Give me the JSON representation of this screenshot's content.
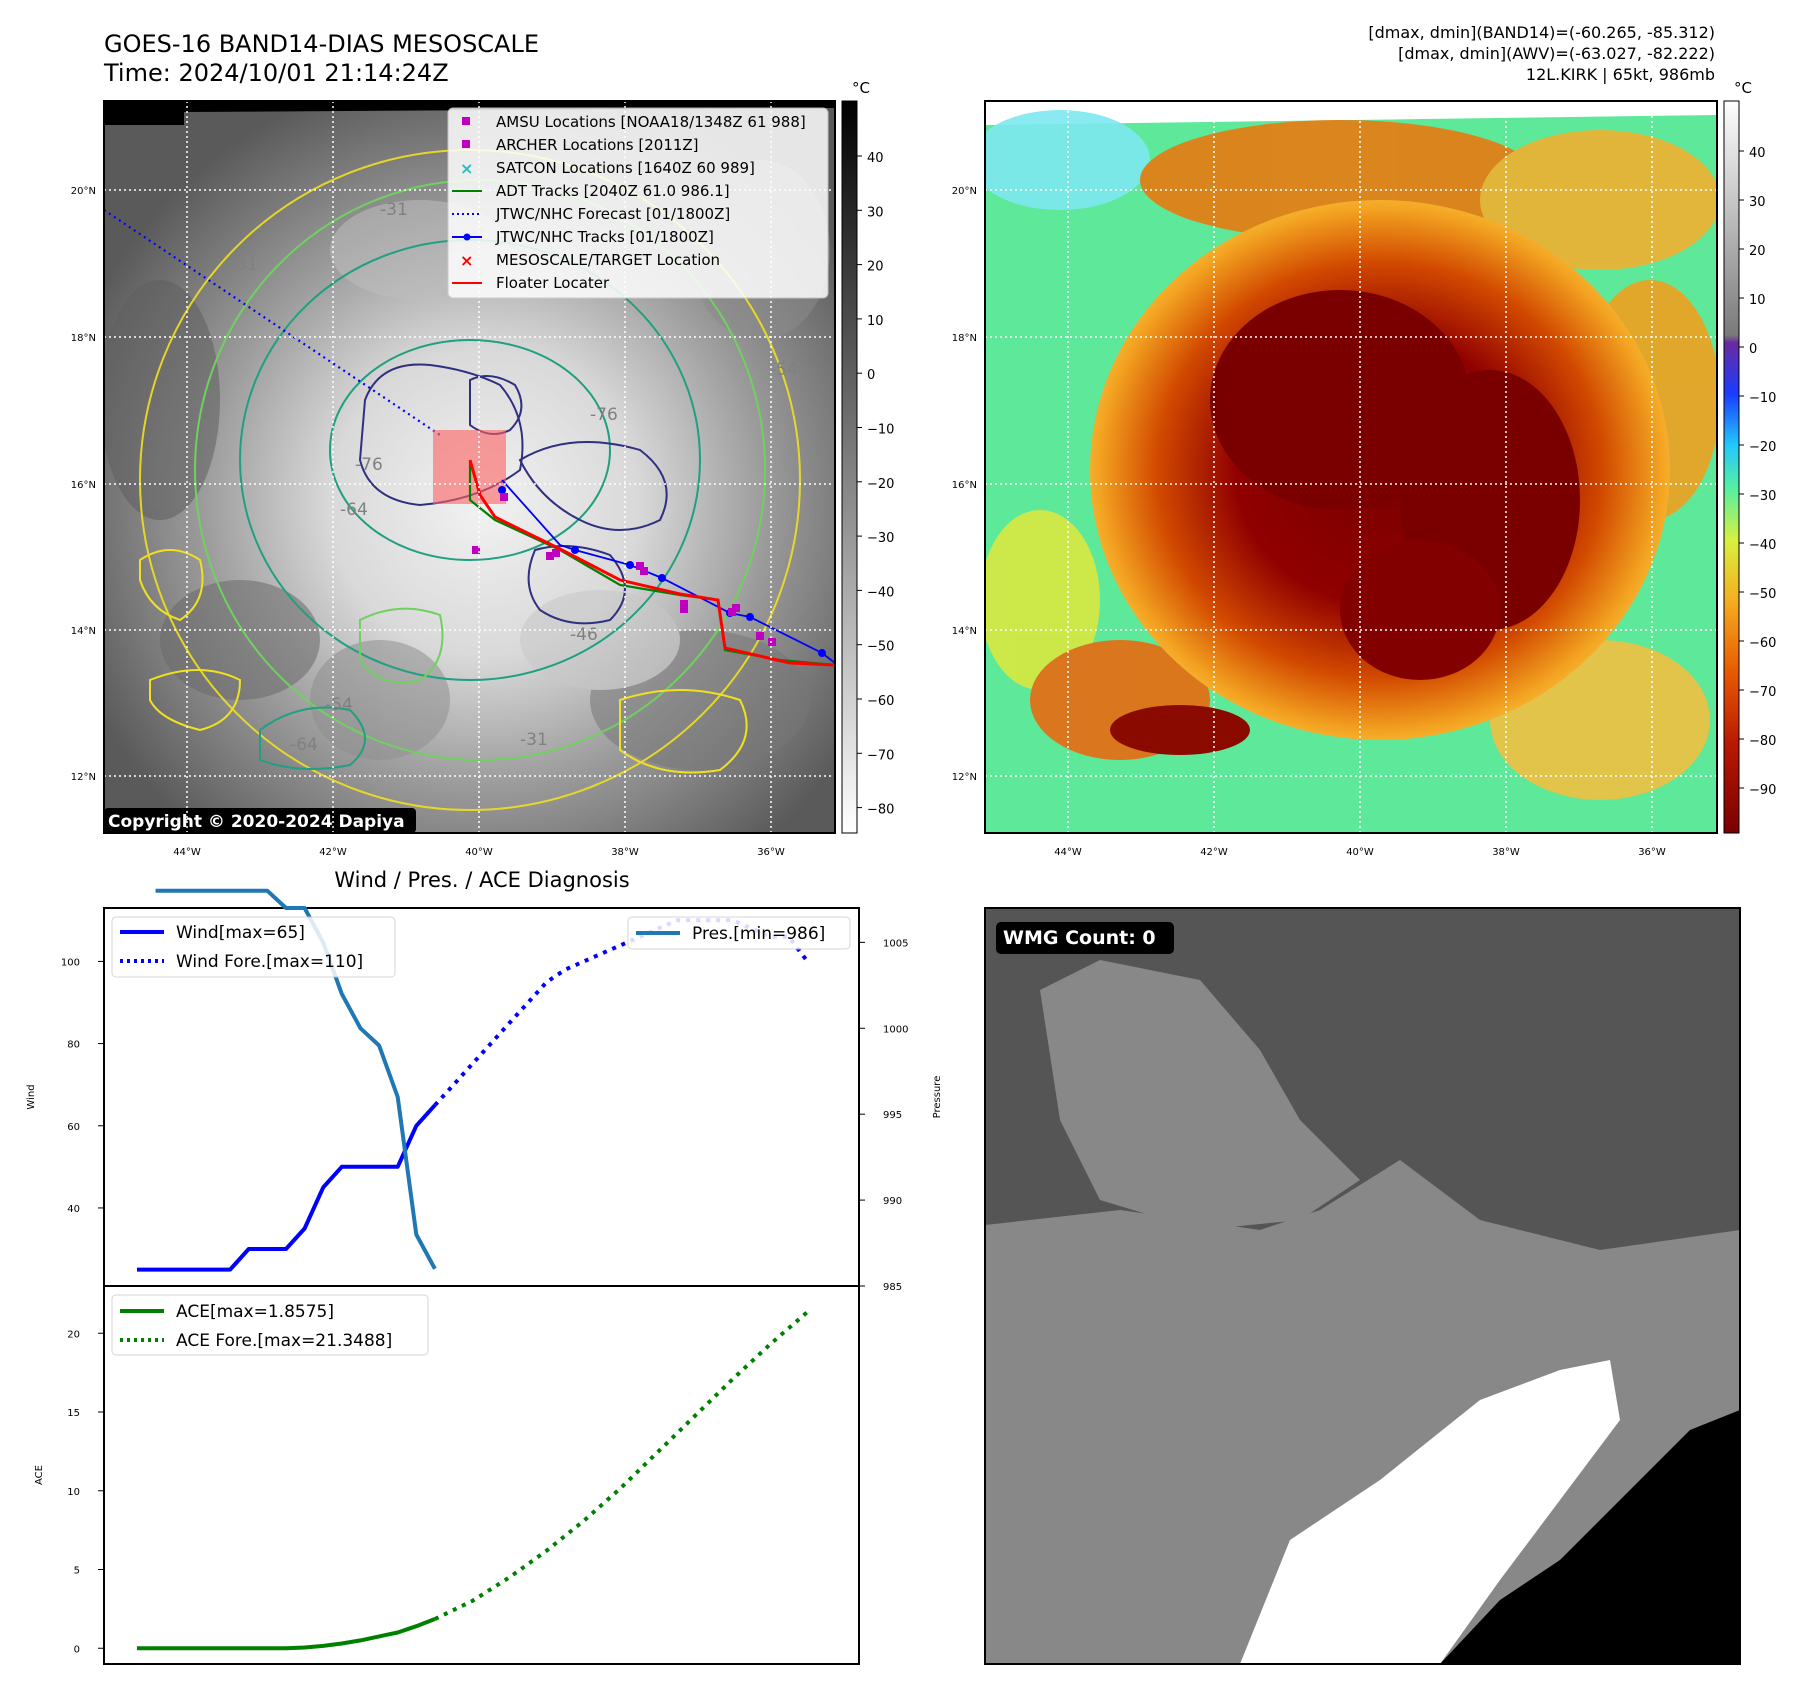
{
  "header": {
    "title_line1": "GOES-16 BAND14-DIAS MESOSCALE",
    "title_line2": "Time: 2024/10/01 21:14:24Z",
    "stats_line1": "[dmax, dmin](BAND14)=(-60.265, -85.312)",
    "stats_line2": "[dmax, dmin](AWV)=(-63.027, -82.222)",
    "stats_line3": "12L.KIRK | 65kt, 986mb"
  },
  "maps": {
    "lat_labels": [
      "20°N",
      "18°N",
      "16°N",
      "14°N",
      "12°N"
    ],
    "lon_labels": [
      "44°W",
      "42°W",
      "40°W",
      "38°W",
      "36°W"
    ],
    "copyright": "Copyright © 2020-2024 Dapiya",
    "contour_labels": [
      "-76",
      "-64",
      "-54",
      "-31",
      "-46",
      "-54",
      "-64",
      "-31",
      "-76",
      "-54",
      "-31"
    ],
    "legend": [
      {
        "label": "AMSU Locations [NOAA18/1348Z 61 988]",
        "marker": "square",
        "color": "#c000c0"
      },
      {
        "label": "ARCHER Locations [2011Z]",
        "marker": "square",
        "color": "#c000c0"
      },
      {
        "label": "SATCON Locations [1640Z 60 989]",
        "marker": "x",
        "color": "#20c0c0"
      },
      {
        "label": "ADT Tracks [2040Z 61.0 986.1]",
        "marker": "line",
        "color": "#008000"
      },
      {
        "label": "JTWC/NHC Forecast [01/1800Z]",
        "marker": "dotted",
        "color": "#0000ff"
      },
      {
        "label": "JTWC/NHC Tracks [01/1800Z]",
        "marker": "line-dot",
        "color": "#0000ff"
      },
      {
        "label": "MESOSCALE/TARGET Location",
        "marker": "x",
        "color": "#ff0000"
      },
      {
        "label": "Floater Locater",
        "marker": "line",
        "color": "#ff0000"
      }
    ]
  },
  "colorbar_gray": {
    "unit": "°C",
    "ticks": [
      "40",
      "30",
      "20",
      "10",
      "0",
      "−10",
      "−20",
      "−30",
      "−40",
      "−50",
      "−60",
      "−70",
      "−80"
    ]
  },
  "colorbar_color": {
    "unit": "°C",
    "ticks": [
      "40",
      "30",
      "20",
      "10",
      "0",
      "−10",
      "−20",
      "−30",
      "−40",
      "−50",
      "−60",
      "−70",
      "−80",
      "−90"
    ]
  },
  "wmg": {
    "label": "WMG Count: 0"
  },
  "chart_data": [
    {
      "type": "line",
      "title": "Wind / Pres. / ACE Diagnosis",
      "ylabel": "Wind",
      "y2label": "Pressure",
      "ylim": [
        21,
        113
      ],
      "y2lim": [
        985,
        1007
      ],
      "yticks": [
        40,
        60,
        80,
        100
      ],
      "y2ticks": [
        985,
        990,
        995,
        1000,
        1005
      ],
      "legend_left": [
        "Wind[max=65]",
        "Wind Fore.[max=110]"
      ],
      "legend_right": [
        "Pres.[min=986]"
      ],
      "series": [
        {
          "name": "Wind[max=65]",
          "color": "#0000ff",
          "style": "solid",
          "x": [
            0,
            1,
            2,
            3,
            4,
            5,
            6,
            7,
            8,
            9,
            10,
            11,
            12,
            13,
            14,
            15,
            16
          ],
          "values": [
            25,
            25,
            25,
            25,
            25,
            25,
            30,
            30,
            30,
            35,
            45,
            50,
            50,
            50,
            50,
            60,
            65
          ]
        },
        {
          "name": "Wind Fore.[max=110]",
          "color": "#0000ff",
          "style": "dotted",
          "x": [
            16,
            17,
            18,
            19,
            20,
            21,
            22,
            23,
            24,
            25,
            26,
            27,
            28,
            29,
            30,
            31,
            32,
            33,
            34,
            35,
            36
          ],
          "values": [
            65,
            70,
            75,
            80,
            85,
            90,
            95,
            98,
            100,
            102,
            104,
            106,
            108,
            110,
            110,
            110,
            110,
            108,
            106,
            106,
            100
          ]
        },
        {
          "name": "Pres.[min=986]",
          "color": "#1f77b4",
          "style": "solid",
          "axis": "right",
          "x": [
            1,
            7,
            8,
            9,
            10,
            11,
            12,
            13,
            14,
            15,
            16
          ],
          "values": [
            1008,
            1008,
            1007,
            1007,
            1005,
            1002,
            1000,
            999,
            996,
            988,
            986
          ]
        }
      ]
    },
    {
      "type": "line",
      "ylabel": "ACE",
      "ylim": [
        -1,
        23
      ],
      "yticks": [
        0,
        5,
        10,
        15,
        20
      ],
      "legend": [
        "ACE[max=1.8575]",
        "ACE Fore.[max=21.3488]"
      ],
      "series": [
        {
          "name": "ACE[max=1.8575]",
          "color": "#008000",
          "style": "solid",
          "x": [
            0,
            2,
            4,
            6,
            8,
            9,
            10,
            11,
            12,
            13,
            14,
            15,
            16
          ],
          "values": [
            0,
            0,
            0,
            0,
            0,
            0.05,
            0.15,
            0.3,
            0.5,
            0.75,
            1.0,
            1.4,
            1.8575
          ]
        },
        {
          "name": "ACE Fore.[max=21.3488]",
          "color": "#008000",
          "style": "dotted",
          "x": [
            16,
            18,
            20,
            22,
            24,
            26,
            28,
            30,
            32,
            34,
            36
          ],
          "values": [
            1.86,
            3.0,
            4.5,
            6.2,
            8.1,
            10.2,
            12.5,
            14.8,
            17.1,
            19.3,
            21.35
          ]
        }
      ]
    }
  ]
}
